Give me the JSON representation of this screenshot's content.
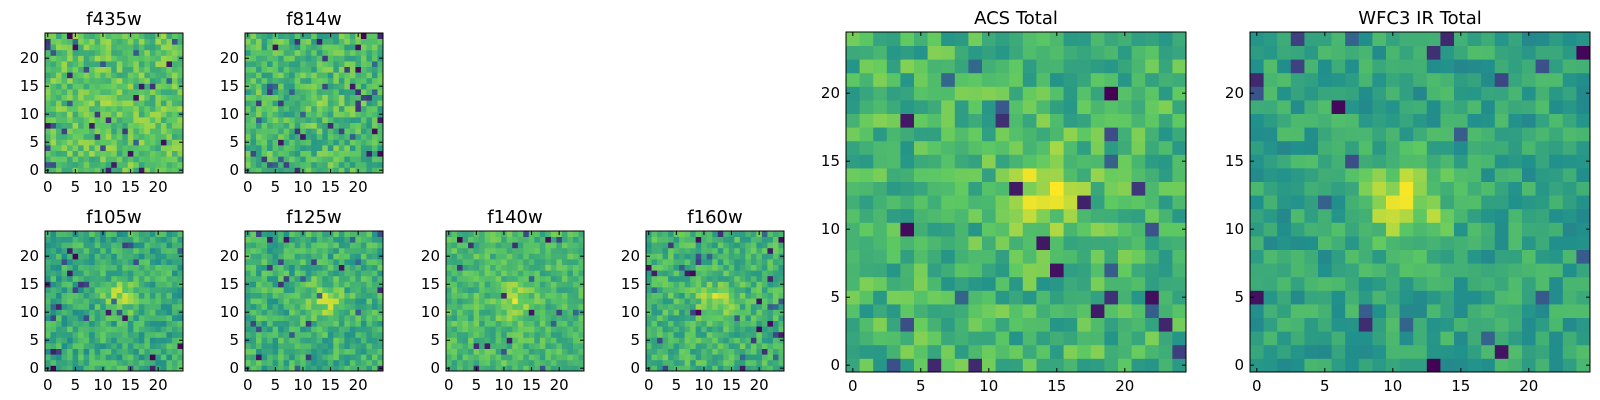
{
  "colormap": [
    "#440154",
    "#3b528b",
    "#21918c",
    "#5ec962",
    "#fde725"
  ],
  "chart_data": [
    {
      "type": "heatmap",
      "title": "f435w",
      "grid_size": 25,
      "xticks": [
        "0",
        "5",
        "10",
        "15",
        "20"
      ],
      "yticks": [
        "0",
        "5",
        "10",
        "15",
        "20"
      ],
      "seed": 11,
      "source": {
        "cx": 12,
        "cy": 12,
        "amp": 0.05
      },
      "noise": 0.14,
      "base": 0.72,
      "outliers": 0.05
    },
    {
      "type": "heatmap",
      "title": "f814w",
      "grid_size": 25,
      "xticks": [
        "0",
        "5",
        "10",
        "15",
        "20"
      ],
      "yticks": [
        "0",
        "5",
        "10",
        "15",
        "20"
      ],
      "seed": 23,
      "source": {
        "cx": 12,
        "cy": 12,
        "amp": 0.08
      },
      "noise": 0.15,
      "base": 0.68,
      "outliers": 0.06
    },
    {
      "type": "heatmap",
      "title": "f105w",
      "grid_size": 25,
      "xticks": [
        "0",
        "5",
        "10",
        "15",
        "20"
      ],
      "yticks": [
        "0",
        "5",
        "10",
        "15",
        "20"
      ],
      "seed": 37,
      "source": {
        "cx": 13,
        "cy": 13,
        "amp": 0.22
      },
      "noise": 0.14,
      "base": 0.62,
      "outliers": 0.05
    },
    {
      "type": "heatmap",
      "title": "f125w",
      "grid_size": 25,
      "xticks": [
        "0",
        "5",
        "10",
        "15",
        "20"
      ],
      "yticks": [
        "0",
        "5",
        "10",
        "15",
        "20"
      ],
      "seed": 41,
      "source": {
        "cx": 14,
        "cy": 12,
        "amp": 0.22
      },
      "noise": 0.14,
      "base": 0.64,
      "outliers": 0.05
    },
    {
      "type": "heatmap",
      "title": "f140w",
      "grid_size": 25,
      "xticks": [
        "0",
        "5",
        "10",
        "15",
        "20"
      ],
      "yticks": [
        "0",
        "5",
        "10",
        "15",
        "20"
      ],
      "seed": 53,
      "source": {
        "cx": 12,
        "cy": 12,
        "amp": 0.18
      },
      "noise": 0.12,
      "base": 0.68,
      "outliers": 0.04
    },
    {
      "type": "heatmap",
      "title": "f160w",
      "grid_size": 25,
      "xticks": [
        "0",
        "5",
        "10",
        "15",
        "20"
      ],
      "yticks": [
        "0",
        "5",
        "10",
        "15",
        "20"
      ],
      "seed": 67,
      "source": {
        "cx": 12,
        "cy": 12,
        "amp": 0.2
      },
      "noise": 0.13,
      "base": 0.66,
      "outliers": 0.05
    },
    {
      "type": "heatmap",
      "title": "ACS Total",
      "grid_size": 25,
      "xticks": [
        "0",
        "5",
        "10",
        "15",
        "20"
      ],
      "yticks": [
        "0",
        "5",
        "10",
        "15",
        "20"
      ],
      "seed": 79,
      "source": {
        "cx": 14,
        "cy": 13,
        "amp": 0.22
      },
      "noise": 0.15,
      "base": 0.66,
      "outliers": 0.05
    },
    {
      "type": "heatmap",
      "title": "WFC3 IR Total",
      "grid_size": 25,
      "xticks": [
        "0",
        "5",
        "10",
        "15",
        "20"
      ],
      "yticks": [
        "0",
        "5",
        "10",
        "15",
        "20"
      ],
      "seed": 97,
      "source": {
        "cx": 11,
        "cy": 12,
        "amp": 0.35
      },
      "noise": 0.12,
      "base": 0.58,
      "outliers": 0.04
    }
  ]
}
